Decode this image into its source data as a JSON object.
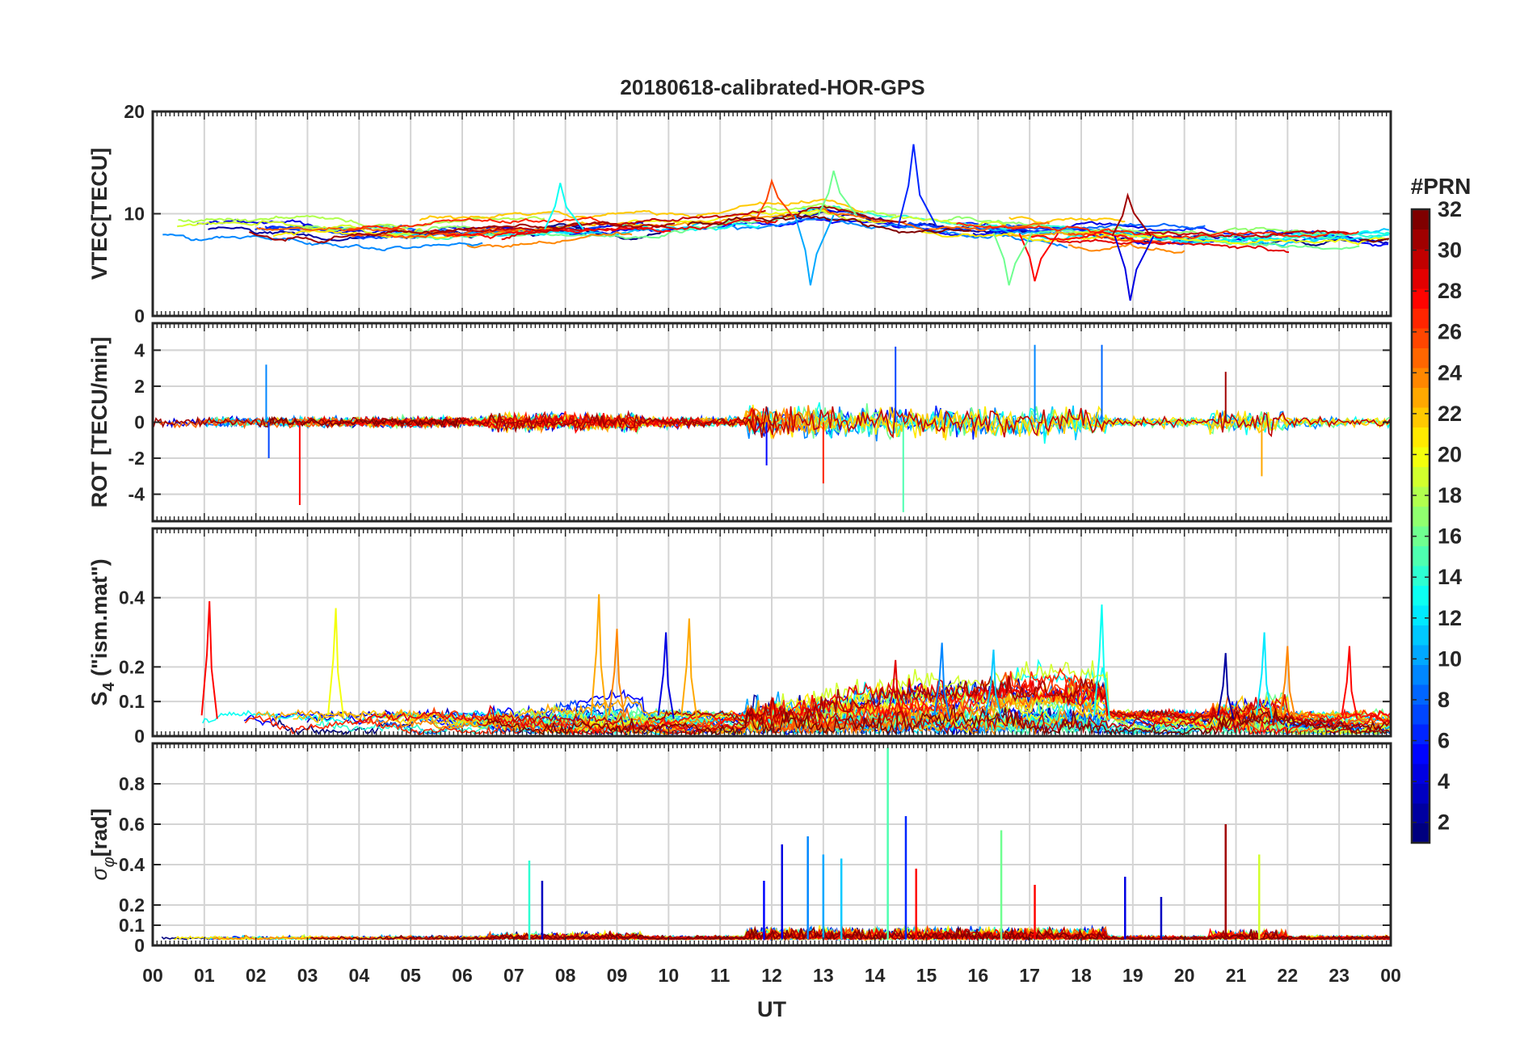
{
  "figure": {
    "title": "20180618-calibrated-HOR-GPS"
  },
  "colorbar": {
    "label": "#PRN",
    "ticks": [
      2,
      4,
      6,
      8,
      10,
      12,
      14,
      16,
      18,
      20,
      22,
      24,
      26,
      28,
      30,
      32
    ],
    "range": [
      1,
      32
    ],
    "colormap": "jet"
  },
  "colors": {
    "grid": "#d4d4d4",
    "axis": "#262626",
    "jet_stops": [
      "#00007f",
      "#0000ff",
      "#007fff",
      "#00ffff",
      "#7fff7f",
      "#ffff00",
      "#ff7f00",
      "#ff0000",
      "#7f0000"
    ]
  },
  "chart_data": [
    {
      "type": "line",
      "panel": "VTEC",
      "ylabel": "VTEC[TECU]",
      "xlabel": "",
      "xlim": [
        0,
        24
      ],
      "ylim": [
        0,
        20
      ],
      "yticks": [
        0,
        10,
        20
      ],
      "xticks": [
        "00",
        "01",
        "02",
        "03",
        "04",
        "05",
        "06",
        "07",
        "08",
        "09",
        "10",
        "11",
        "12",
        "13",
        "14",
        "15",
        "16",
        "17",
        "18",
        "19",
        "20",
        "21",
        "22",
        "23",
        "00"
      ],
      "grid": true,
      "series_note": "one line per GPS PRN, coloured by PRN",
      "baseline": [
        [
          0,
          8.5
        ],
        [
          2,
          8.3
        ],
        [
          4,
          7.8
        ],
        [
          6,
          8.0
        ],
        [
          8,
          8.5
        ],
        [
          10,
          8.8
        ],
        [
          12,
          9.5
        ],
        [
          13,
          10.0
        ],
        [
          14,
          9.0
        ],
        [
          16,
          8.2
        ],
        [
          18,
          8.0
        ],
        [
          20,
          7.6
        ],
        [
          22,
          7.5
        ],
        [
          24,
          7.6
        ]
      ],
      "events": [
        {
          "x": 14.75,
          "y": 16.8,
          "prn": 6
        },
        {
          "x": 18.95,
          "y": 1.5,
          "prn": 4
        },
        {
          "x": 13.2,
          "y": 14.2,
          "prn": 16
        },
        {
          "x": 12.75,
          "y": 3.0,
          "prn": 10
        },
        {
          "x": 17.1,
          "y": 3.4,
          "prn": 28
        },
        {
          "x": 16.6,
          "y": 3.0,
          "prn": 16
        },
        {
          "x": 7.9,
          "y": 13.0,
          "prn": 13
        },
        {
          "x": 12.0,
          "y": 13.2,
          "prn": 26
        },
        {
          "x": 18.9,
          "y": 11.8,
          "prn": 31
        }
      ]
    },
    {
      "type": "line",
      "panel": "ROT",
      "ylabel": "ROT [TECU/min]",
      "xlabel": "",
      "xlim": [
        0,
        24
      ],
      "ylim": [
        -5.5,
        5.5
      ],
      "yticks": [
        -4,
        -2,
        0,
        2,
        4
      ],
      "grid": true,
      "spikes": [
        {
          "x": 2.2,
          "y": 3.2,
          "prn": 9
        },
        {
          "x": 2.25,
          "y": -2.0,
          "prn": 7
        },
        {
          "x": 2.85,
          "y": -4.6,
          "prn": 28
        },
        {
          "x": 14.4,
          "y": 4.2,
          "prn": 7
        },
        {
          "x": 14.55,
          "y": -5.0,
          "prn": 15
        },
        {
          "x": 17.1,
          "y": 4.3,
          "prn": 9
        },
        {
          "x": 18.4,
          "y": 4.3,
          "prn": 8
        },
        {
          "x": 13.0,
          "y": -3.4,
          "prn": 27
        },
        {
          "x": 11.9,
          "y": -2.4,
          "prn": 5
        },
        {
          "x": 20.8,
          "y": 2.8,
          "prn": 31
        },
        {
          "x": 21.5,
          "y": -3.0,
          "prn": 23
        }
      ]
    },
    {
      "type": "line",
      "panel": "S4",
      "ylabel": "S4 (\"ism.mat\")",
      "ylabel_main": "S",
      "ylabel_sub": "4",
      "ylabel_rest": " (\"ism.mat\")",
      "xlabel": "",
      "xlim": [
        0,
        24
      ],
      "ylim": [
        0,
        0.6
      ],
      "yticks": [
        0,
        0.1,
        0.2,
        0.4
      ],
      "ytick_labels": [
        "0",
        "0.1",
        "0.2",
        "0.4"
      ],
      "grid": true,
      "peaks": [
        {
          "x": 1.1,
          "y": 0.39,
          "prn": 28
        },
        {
          "x": 3.55,
          "y": 0.37,
          "prn": 20
        },
        {
          "x": 8.65,
          "y": 0.41,
          "prn": 23
        },
        {
          "x": 10.4,
          "y": 0.34,
          "prn": 23
        },
        {
          "x": 9.0,
          "y": 0.31,
          "prn": 24
        },
        {
          "x": 18.4,
          "y": 0.38,
          "prn": 13
        },
        {
          "x": 9.95,
          "y": 0.3,
          "prn": 4
        },
        {
          "x": 21.55,
          "y": 0.3,
          "prn": 12
        },
        {
          "x": 23.2,
          "y": 0.26,
          "prn": 28
        },
        {
          "x": 22.0,
          "y": 0.26,
          "prn": 24
        },
        {
          "x": 15.3,
          "y": 0.27,
          "prn": 9
        },
        {
          "x": 16.3,
          "y": 0.25,
          "prn": 11
        },
        {
          "x": 20.8,
          "y": 0.24,
          "prn": 2
        },
        {
          "x": 14.4,
          "y": 0.22,
          "prn": 29
        }
      ]
    },
    {
      "type": "line",
      "panel": "sigma_phi",
      "ylabel": "σφ[rad]",
      "ylabel_main": "σ",
      "ylabel_sub": "φ",
      "ylabel_rest": "[rad]",
      "xlabel": "UT",
      "xlim": [
        0,
        24
      ],
      "ylim": [
        0,
        1.0
      ],
      "yticks": [
        0,
        0.1,
        0.2,
        0.4,
        0.6,
        0.8
      ],
      "ytick_labels": [
        "0",
        "0.1",
        "0.2",
        "0.4",
        "0.6",
        "0.8"
      ],
      "grid": true,
      "peaks": [
        {
          "x": 14.25,
          "y": 0.98,
          "prn": 15
        },
        {
          "x": 14.6,
          "y": 0.64,
          "prn": 6
        },
        {
          "x": 20.8,
          "y": 0.6,
          "prn": 31
        },
        {
          "x": 16.45,
          "y": 0.57,
          "prn": 16
        },
        {
          "x": 12.7,
          "y": 0.54,
          "prn": 9
        },
        {
          "x": 12.2,
          "y": 0.5,
          "prn": 4
        },
        {
          "x": 13.0,
          "y": 0.45,
          "prn": 10
        },
        {
          "x": 21.45,
          "y": 0.45,
          "prn": 19
        },
        {
          "x": 13.35,
          "y": 0.43,
          "prn": 11
        },
        {
          "x": 7.3,
          "y": 0.42,
          "prn": 14
        },
        {
          "x": 14.8,
          "y": 0.38,
          "prn": 28
        },
        {
          "x": 18.85,
          "y": 0.34,
          "prn": 4
        },
        {
          "x": 7.55,
          "y": 0.32,
          "prn": 3
        },
        {
          "x": 17.1,
          "y": 0.3,
          "prn": 28
        },
        {
          "x": 11.85,
          "y": 0.32,
          "prn": 5
        },
        {
          "x": 19.55,
          "y": 0.24,
          "prn": 3
        }
      ]
    }
  ]
}
